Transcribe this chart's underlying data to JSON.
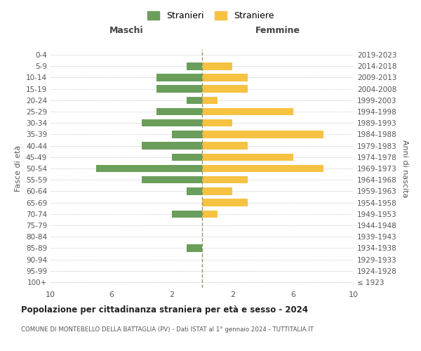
{
  "age_groups": [
    "100+",
    "95-99",
    "90-94",
    "85-89",
    "80-84",
    "75-79",
    "70-74",
    "65-69",
    "60-64",
    "55-59",
    "50-54",
    "45-49",
    "40-44",
    "35-39",
    "30-34",
    "25-29",
    "20-24",
    "15-19",
    "10-14",
    "5-9",
    "0-4"
  ],
  "birth_years": [
    "≤ 1923",
    "1924-1928",
    "1929-1933",
    "1934-1938",
    "1939-1943",
    "1944-1948",
    "1949-1953",
    "1954-1958",
    "1959-1963",
    "1964-1968",
    "1969-1973",
    "1974-1978",
    "1979-1983",
    "1984-1988",
    "1989-1993",
    "1994-1998",
    "1999-2003",
    "2004-2008",
    "2009-2013",
    "2014-2018",
    "2019-2023"
  ],
  "maschi_stranieri": [
    0,
    0,
    0,
    1,
    0,
    0,
    2,
    0,
    1,
    4,
    7,
    2,
    4,
    2,
    4,
    3,
    1,
    3,
    3,
    1,
    0
  ],
  "femmine_straniere": [
    0,
    0,
    0,
    0,
    0,
    0,
    1,
    3,
    2,
    3,
    8,
    6,
    3,
    8,
    2,
    6,
    1,
    3,
    3,
    2,
    0
  ],
  "color_maschi": "#6a9e5a",
  "color_femmine": "#f5c242",
  "title": "Popolazione per cittadinanza straniera per età e sesso - 2024",
  "subtitle": "COMUNE DI MONTEBELLO DELLA BATTAGLIA (PV) - Dati ISTAT al 1° gennaio 2024 - TUTTITALIA.IT",
  "xlabel_left": "Maschi",
  "xlabel_right": "Femmine",
  "ylabel": "Fasce di età",
  "ylabel_right": "Anni di nascita",
  "legend_stranieri": "Stranieri",
  "legend_straniere": "Straniere",
  "xlim": 10,
  "background_color": "#ffffff",
  "grid_color": "#cccccc"
}
